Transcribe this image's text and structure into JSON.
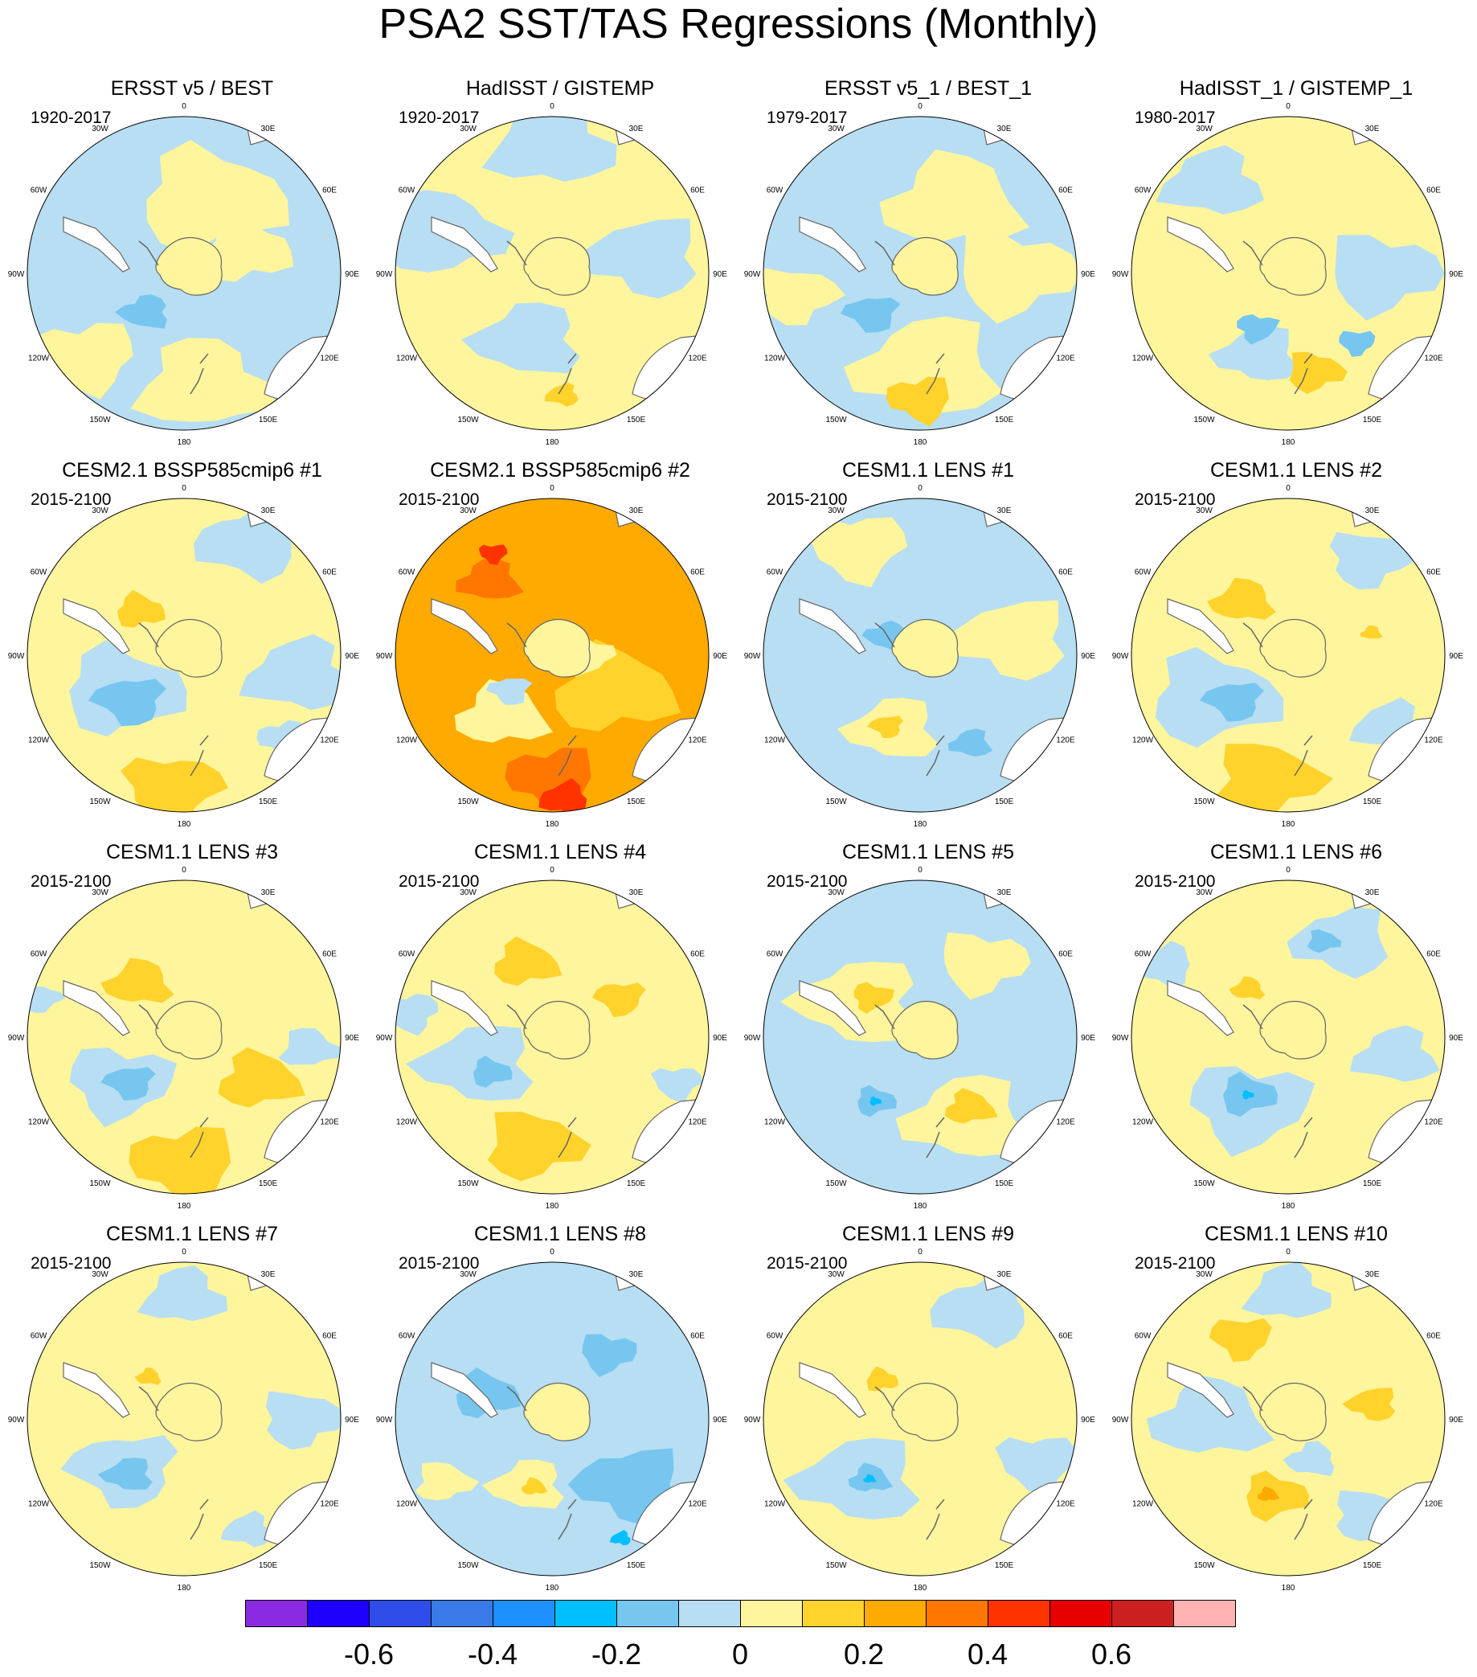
{
  "title": "PSA2 SST/TAS Regressions (Monthly)",
  "lon_labels": [
    "0",
    "30E",
    "60E",
    "90E",
    "120E",
    "150E",
    "180",
    "150W",
    "120W",
    "90W",
    "60W",
    "30W"
  ],
  "colors": {
    "neg_0_1": "#b7def3",
    "neg_0_2": "#77c6f0",
    "neg_0_3": "#00bfff",
    "pos_0_1": "#fff59d",
    "pos_0_2": "#ffd32c",
    "pos_0_3": "#ffaa00",
    "pos_0_4": "#ff7700",
    "pos_0_5": "#ff3300",
    "land": "#ffffff",
    "coast": "#666666"
  },
  "panels": [
    {
      "title": "ERSST v5 / BEST",
      "period": "1920-2017",
      "pattern": {
        "base": "neg_0_1",
        "blobs": [
          {
            "c": "pos_0_1",
            "lon": 20,
            "r": 0.5,
            "s": 0.36
          },
          {
            "c": "pos_0_1",
            "lon": 70,
            "r": 0.42,
            "s": 0.22
          },
          {
            "c": "pos_0_1",
            "lon": 170,
            "r": 0.72,
            "s": 0.32
          },
          {
            "c": "pos_0_1",
            "lon": 230,
            "r": 0.82,
            "s": 0.25
          },
          {
            "c": "neg_0_2",
            "lon": 225,
            "r": 0.35,
            "s": 0.12
          }
        ]
      }
    },
    {
      "title": "HadISST / GISTEMP",
      "period": "1920-2017",
      "pattern": {
        "base": "pos_0_1",
        "blobs": [
          {
            "c": "neg_0_1",
            "lon": 0,
            "r": 0.82,
            "s": 0.3
          },
          {
            "c": "neg_0_1",
            "lon": 80,
            "r": 0.6,
            "s": 0.28
          },
          {
            "c": "neg_0_1",
            "lon": 200,
            "r": 0.45,
            "s": 0.26
          },
          {
            "c": "neg_0_1",
            "lon": 290,
            "r": 0.75,
            "s": 0.3
          },
          {
            "c": "pos_0_2",
            "lon": 175,
            "r": 0.78,
            "s": 0.08
          }
        ]
      }
    },
    {
      "title": "ERSST v5_1 / BEST_1",
      "period": "1979-2017",
      "pattern": {
        "base": "neg_0_1",
        "blobs": [
          {
            "c": "pos_0_1",
            "lon": 25,
            "r": 0.5,
            "s": 0.33
          },
          {
            "c": "pos_0_1",
            "lon": 90,
            "r": 0.6,
            "s": 0.3
          },
          {
            "c": "pos_0_1",
            "lon": 175,
            "r": 0.6,
            "s": 0.35
          },
          {
            "c": "pos_0_2",
            "lon": 180,
            "r": 0.8,
            "s": 0.16
          },
          {
            "c": "neg_0_2",
            "lon": 230,
            "r": 0.4,
            "s": 0.13
          },
          {
            "c": "pos_0_1",
            "lon": 260,
            "r": 0.8,
            "s": 0.2
          }
        ]
      }
    },
    {
      "title": "HadISST_1 / GISTEMP_1",
      "period": "1980-2017",
      "pattern": {
        "base": "pos_0_1",
        "blobs": [
          {
            "c": "neg_0_1",
            "lon": 90,
            "r": 0.6,
            "s": 0.28
          },
          {
            "c": "neg_0_1",
            "lon": 200,
            "r": 0.55,
            "s": 0.2
          },
          {
            "c": "neg_0_1",
            "lon": 320,
            "r": 0.75,
            "s": 0.24
          },
          {
            "c": "pos_0_2",
            "lon": 165,
            "r": 0.65,
            "s": 0.14
          },
          {
            "c": "neg_0_2",
            "lon": 210,
            "r": 0.4,
            "s": 0.1
          },
          {
            "c": "neg_0_2",
            "lon": 135,
            "r": 0.62,
            "s": 0.09
          }
        ]
      }
    },
    {
      "title": "CESM2.1 BSSP585cmip6 #1",
      "period": "2015-2100",
      "pattern": {
        "base": "pos_0_1",
        "blobs": [
          {
            "c": "neg_0_1",
            "lon": 30,
            "r": 0.82,
            "s": 0.25
          },
          {
            "c": "neg_0_1",
            "lon": 100,
            "r": 0.75,
            "s": 0.26
          },
          {
            "c": "neg_0_1",
            "lon": 240,
            "r": 0.45,
            "s": 0.3
          },
          {
            "c": "neg_0_2",
            "lon": 230,
            "r": 0.45,
            "s": 0.17
          },
          {
            "c": "pos_0_2",
            "lon": 185,
            "r": 0.85,
            "s": 0.24
          },
          {
            "c": "pos_0_2",
            "lon": 315,
            "r": 0.4,
            "s": 0.12
          },
          {
            "c": "neg_0_1",
            "lon": 130,
            "r": 0.82,
            "s": 0.12
          }
        ]
      }
    },
    {
      "title": "CESM2.1 BSSP585cmip6 #2",
      "period": "2015-2100",
      "pattern": {
        "base": "pos_0_3",
        "blobs": [
          {
            "c": "pos_0_4",
            "lon": 180,
            "r": 0.78,
            "s": 0.22
          },
          {
            "c": "pos_0_5",
            "lon": 175,
            "r": 0.92,
            "s": 0.12
          },
          {
            "c": "pos_0_4",
            "lon": 320,
            "r": 0.62,
            "s": 0.15
          },
          {
            "c": "pos_0_5",
            "lon": 330,
            "r": 0.75,
            "s": 0.07
          },
          {
            "c": "pos_0_1",
            "lon": 220,
            "r": 0.5,
            "s": 0.22
          },
          {
            "c": "pos_0_2",
            "lon": 120,
            "r": 0.45,
            "s": 0.3
          },
          {
            "c": "neg_0_1",
            "lon": 230,
            "r": 0.35,
            "s": 0.1
          },
          {
            "c": "pos_0_1",
            "lon": 90,
            "r": 0.2,
            "s": 0.14
          }
        ]
      }
    },
    {
      "title": "CESM1.1 LENS #1",
      "period": "2015-2100",
      "pattern": {
        "base": "neg_0_1",
        "blobs": [
          {
            "c": "pos_0_1",
            "lon": 80,
            "r": 0.6,
            "s": 0.28
          },
          {
            "c": "pos_0_1",
            "lon": 200,
            "r": 0.5,
            "s": 0.22
          },
          {
            "c": "pos_0_2",
            "lon": 205,
            "r": 0.5,
            "s": 0.08
          },
          {
            "c": "pos_0_1",
            "lon": 330,
            "r": 0.8,
            "s": 0.24
          },
          {
            "c": "neg_0_2",
            "lon": 300,
            "r": 0.25,
            "s": 0.1
          },
          {
            "c": "neg_0_2",
            "lon": 150,
            "r": 0.65,
            "s": 0.1
          }
        ]
      }
    },
    {
      "title": "CESM1.1 LENS #2",
      "period": "2015-2100",
      "pattern": {
        "base": "pos_0_1",
        "blobs": [
          {
            "c": "neg_0_1",
            "lon": 240,
            "r": 0.55,
            "s": 0.32
          },
          {
            "c": "neg_0_2",
            "lon": 230,
            "r": 0.45,
            "s": 0.14
          },
          {
            "c": "pos_0_2",
            "lon": 190,
            "r": 0.8,
            "s": 0.26
          },
          {
            "c": "pos_0_2",
            "lon": 320,
            "r": 0.45,
            "s": 0.15
          },
          {
            "c": "neg_0_1",
            "lon": 40,
            "r": 0.8,
            "s": 0.2
          },
          {
            "c": "neg_0_1",
            "lon": 125,
            "r": 0.8,
            "s": 0.18
          },
          {
            "c": "pos_0_2",
            "lon": 75,
            "r": 0.55,
            "s": 0.05
          }
        ]
      }
    },
    {
      "title": "CESM1.1 LENS #3",
      "period": "2015-2100",
      "pattern": {
        "base": "pos_0_1",
        "blobs": [
          {
            "c": "pos_0_2",
            "lon": 180,
            "r": 0.8,
            "s": 0.26
          },
          {
            "c": "pos_0_2",
            "lon": 120,
            "r": 0.55,
            "s": 0.2
          },
          {
            "c": "pos_0_2",
            "lon": 320,
            "r": 0.45,
            "s": 0.16
          },
          {
            "c": "neg_0_1",
            "lon": 235,
            "r": 0.5,
            "s": 0.26
          },
          {
            "c": "neg_0_2",
            "lon": 230,
            "r": 0.45,
            "s": 0.12
          },
          {
            "c": "neg_0_1",
            "lon": 95,
            "r": 0.8,
            "s": 0.14
          },
          {
            "c": "neg_0_1",
            "lon": 285,
            "r": 0.95,
            "s": 0.1
          }
        ]
      }
    },
    {
      "title": "CESM1.1 LENS #4",
      "period": "2015-2100",
      "pattern": {
        "base": "pos_0_1",
        "blobs": [
          {
            "c": "pos_0_2",
            "lon": 190,
            "r": 0.7,
            "s": 0.24
          },
          {
            "c": "pos_0_2",
            "lon": 340,
            "r": 0.5,
            "s": 0.16
          },
          {
            "c": "pos_0_2",
            "lon": 60,
            "r": 0.5,
            "s": 0.12
          },
          {
            "c": "neg_0_1",
            "lon": 250,
            "r": 0.5,
            "s": 0.28
          },
          {
            "c": "neg_0_2",
            "lon": 240,
            "r": 0.45,
            "s": 0.1
          },
          {
            "c": "neg_0_1",
            "lon": 280,
            "r": 0.92,
            "s": 0.14
          },
          {
            "c": "neg_0_1",
            "lon": 110,
            "r": 0.85,
            "s": 0.12
          }
        ]
      }
    },
    {
      "title": "CESM1.1 LENS #5",
      "period": "2015-2100",
      "pattern": {
        "base": "neg_0_1",
        "blobs": [
          {
            "c": "pos_0_1",
            "lon": 300,
            "r": 0.45,
            "s": 0.3
          },
          {
            "c": "pos_0_1",
            "lon": 150,
            "r": 0.6,
            "s": 0.3
          },
          {
            "c": "pos_0_2",
            "lon": 145,
            "r": 0.55,
            "s": 0.12
          },
          {
            "c": "pos_0_2",
            "lon": 310,
            "r": 0.4,
            "s": 0.1
          },
          {
            "c": "pos_0_1",
            "lon": 40,
            "r": 0.62,
            "s": 0.22
          },
          {
            "c": "neg_0_2",
            "lon": 215,
            "r": 0.5,
            "s": 0.1
          },
          {
            "c": "neg_0_3",
            "lon": 215,
            "r": 0.5,
            "s": 0.03
          }
        ]
      }
    },
    {
      "title": "CESM1.1 LENS #6",
      "period": "2015-2100",
      "pattern": {
        "base": "pos_0_1",
        "blobs": [
          {
            "c": "neg_0_1",
            "lon": 210,
            "r": 0.5,
            "s": 0.3
          },
          {
            "c": "neg_0_2",
            "lon": 215,
            "r": 0.45,
            "s": 0.14
          },
          {
            "c": "neg_0_3",
            "lon": 215,
            "r": 0.45,
            "s": 0.03
          },
          {
            "c": "neg_0_1",
            "lon": 30,
            "r": 0.7,
            "s": 0.24
          },
          {
            "c": "neg_0_2",
            "lon": 20,
            "r": 0.65,
            "s": 0.08
          },
          {
            "c": "neg_0_1",
            "lon": 100,
            "r": 0.7,
            "s": 0.2
          },
          {
            "c": "neg_0_1",
            "lon": 300,
            "r": 0.92,
            "s": 0.15
          },
          {
            "c": "pos_0_2",
            "lon": 320,
            "r": 0.4,
            "s": 0.08
          }
        ]
      }
    },
    {
      "title": "CESM1.1 LENS #7",
      "period": "2015-2100",
      "pattern": {
        "base": "pos_0_1",
        "blobs": [
          {
            "c": "neg_0_1",
            "lon": 230,
            "r": 0.5,
            "s": 0.26
          },
          {
            "c": "neg_0_2",
            "lon": 225,
            "r": 0.5,
            "s": 0.12
          },
          {
            "c": "neg_0_1",
            "lon": 0,
            "r": 0.78,
            "s": 0.2
          },
          {
            "c": "neg_0_1",
            "lon": 90,
            "r": 0.75,
            "s": 0.2
          },
          {
            "c": "neg_0_1",
            "lon": 150,
            "r": 0.82,
            "s": 0.12
          },
          {
            "c": "pos_0_2",
            "lon": 320,
            "r": 0.35,
            "s": 0.06
          }
        ]
      }
    },
    {
      "title": "CESM1.1 LENS #8",
      "period": "2015-2100",
      "pattern": {
        "base": "neg_0_1",
        "blobs": [
          {
            "c": "neg_0_2",
            "lon": 130,
            "r": 0.65,
            "s": 0.26
          },
          {
            "c": "neg_0_2",
            "lon": 290,
            "r": 0.45,
            "s": 0.16
          },
          {
            "c": "neg_0_2",
            "lon": 40,
            "r": 0.55,
            "s": 0.14
          },
          {
            "c": "pos_0_1",
            "lon": 200,
            "r": 0.45,
            "s": 0.18
          },
          {
            "c": "pos_0_2",
            "lon": 195,
            "r": 0.45,
            "s": 0.06
          },
          {
            "c": "pos_0_1",
            "lon": 240,
            "r": 0.8,
            "s": 0.14
          },
          {
            "c": "neg_0_3",
            "lon": 150,
            "r": 0.88,
            "s": 0.05
          }
        ]
      }
    },
    {
      "title": "CESM1.1 LENS #9",
      "period": "2015-2100",
      "pattern": {
        "base": "pos_0_1",
        "blobs": [
          {
            "c": "neg_0_1",
            "lon": 225,
            "r": 0.55,
            "s": 0.3
          },
          {
            "c": "neg_0_2",
            "lon": 220,
            "r": 0.5,
            "s": 0.1
          },
          {
            "c": "neg_0_3",
            "lon": 220,
            "r": 0.5,
            "s": 0.03
          },
          {
            "c": "neg_0_1",
            "lon": 30,
            "r": 0.8,
            "s": 0.24
          },
          {
            "c": "neg_0_1",
            "lon": 110,
            "r": 0.8,
            "s": 0.2
          },
          {
            "c": "pos_0_2",
            "lon": 315,
            "r": 0.35,
            "s": 0.08
          }
        ]
      }
    },
    {
      "title": "CESM1.1 LENS #10",
      "period": "2015-2100",
      "pattern": {
        "base": "pos_0_1",
        "blobs": [
          {
            "c": "pos_0_2",
            "lon": 190,
            "r": 0.5,
            "s": 0.16
          },
          {
            "c": "pos_0_3",
            "lon": 195,
            "r": 0.5,
            "s": 0.05
          },
          {
            "c": "pos_0_2",
            "lon": 330,
            "r": 0.6,
            "s": 0.15
          },
          {
            "c": "pos_0_2",
            "lon": 80,
            "r": 0.55,
            "s": 0.12
          },
          {
            "c": "neg_0_1",
            "lon": 270,
            "r": 0.5,
            "s": 0.28
          },
          {
            "c": "neg_0_1",
            "lon": 0,
            "r": 0.8,
            "s": 0.2
          },
          {
            "c": "neg_0_1",
            "lon": 140,
            "r": 0.8,
            "s": 0.18
          },
          {
            "c": "neg_0_1",
            "lon": 150,
            "r": 0.3,
            "s": 0.12
          }
        ]
      }
    }
  ],
  "chart_data": {
    "type": "heatmap",
    "title": "PSA2 SST/TAS Regressions (Monthly)",
    "projection": "south polar stereographic",
    "longitude_ticks": [
      "0",
      "30E",
      "60E",
      "90E",
      "120E",
      "150E",
      "180",
      "150W",
      "120W",
      "90W",
      "60W",
      "30W"
    ],
    "panels": [
      {
        "title": "ERSST v5 / BEST",
        "period": "1920-2017"
      },
      {
        "title": "HadISST / GISTEMP",
        "period": "1920-2017"
      },
      {
        "title": "ERSST v5_1 / BEST_1",
        "period": "1979-2017"
      },
      {
        "title": "HadISST_1 / GISTEMP_1",
        "period": "1980-2017"
      },
      {
        "title": "CESM2.1 BSSP585cmip6 #1",
        "period": "2015-2100"
      },
      {
        "title": "CESM2.1 BSSP585cmip6 #2",
        "period": "2015-2100"
      },
      {
        "title": "CESM1.1 LENS #1",
        "period": "2015-2100"
      },
      {
        "title": "CESM1.1 LENS #2",
        "period": "2015-2100"
      },
      {
        "title": "CESM1.1 LENS #3",
        "period": "2015-2100"
      },
      {
        "title": "CESM1.1 LENS #4",
        "period": "2015-2100"
      },
      {
        "title": "CESM1.1 LENS #5",
        "period": "2015-2100"
      },
      {
        "title": "CESM1.1 LENS #6",
        "period": "2015-2100"
      },
      {
        "title": "CESM1.1 LENS #7",
        "period": "2015-2100"
      },
      {
        "title": "CESM1.1 LENS #8",
        "period": "2015-2100"
      },
      {
        "title": "CESM1.1 LENS #9",
        "period": "2015-2100"
      },
      {
        "title": "CESM1.1 LENS #10",
        "period": "2015-2100"
      }
    ],
    "colorbar": {
      "levels": [
        -0.7,
        -0.6,
        -0.5,
        -0.4,
        -0.3,
        -0.2,
        -0.1,
        0,
        0.1,
        0.2,
        0.3,
        0.4,
        0.5,
        0.6,
        0.7
      ],
      "colors": [
        "#8a2be2",
        "#1e00ff",
        "#2e4de8",
        "#3a7ae8",
        "#1e90ff",
        "#00bfff",
        "#77c6f0",
        "#b7def3",
        "#fff59d",
        "#ffd32c",
        "#ffaa00",
        "#ff7700",
        "#ff3300",
        "#e60000",
        "#cc1f1f",
        "#ffb3b3"
      ],
      "tick_labels": [
        "-0.6",
        "-0.4",
        "-0.2",
        "0",
        "0.2",
        "0.4",
        "0.6"
      ],
      "tick_values": [
        -0.6,
        -0.4,
        -0.2,
        0,
        0.2,
        0.4,
        0.6
      ]
    }
  }
}
